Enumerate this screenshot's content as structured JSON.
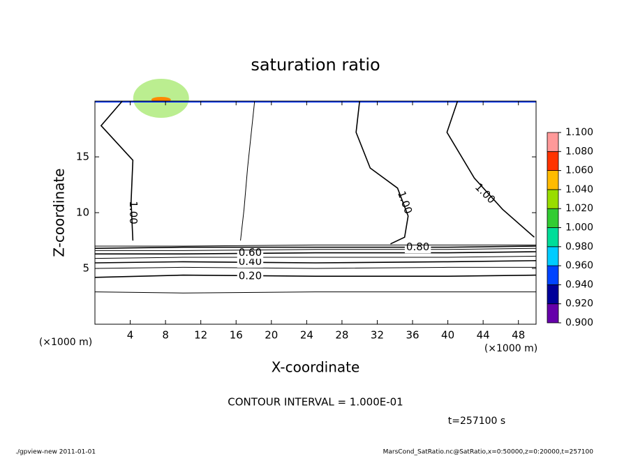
{
  "chart_data": {
    "type": "contour",
    "title": "saturation ratio",
    "xlabel": "X-coordinate",
    "ylabel": "Z-coordinate",
    "xunit": "(×1000 m)",
    "yunit": "(×1000 m)",
    "xlim": [
      0,
      50
    ],
    "ylim": [
      0,
      20
    ],
    "xticks": [
      4,
      8,
      12,
      16,
      20,
      24,
      28,
      32,
      36,
      40,
      44,
      48
    ],
    "yticks": [
      5,
      10,
      15
    ],
    "field_color": "#33cc33",
    "contours": [
      {
        "level": 0.1,
        "x": [
          0,
          10,
          25,
          40,
          50
        ],
        "y": [
          2.9,
          2.8,
          2.9,
          2.9,
          2.9
        ]
      },
      {
        "level": 0.2,
        "label": {
          "value": 0.2,
          "label": "0.20"
        },
        "label_at": [
          17.6,
          4.3
        ],
        "x": [
          0,
          10,
          25,
          40,
          50
        ],
        "y": [
          4.2,
          4.4,
          4.3,
          4.3,
          4.4
        ]
      },
      {
        "level": 0.3,
        "x": [
          0,
          10,
          25,
          40,
          50
        ],
        "y": [
          5.0,
          5.1,
          5.0,
          5.1,
          5.1
        ]
      },
      {
        "level": 0.4,
        "label": {
          "value": 0.4,
          "label": "0.40"
        },
        "label_at": [
          17.6,
          5.6
        ],
        "x": [
          0,
          10,
          25,
          40,
          50
        ],
        "y": [
          5.5,
          5.6,
          5.5,
          5.6,
          5.7
        ]
      },
      {
        "level": 0.5,
        "x": [
          0,
          10,
          25,
          40,
          50
        ],
        "y": [
          5.9,
          6.0,
          6.0,
          6.0,
          6.1
        ]
      },
      {
        "level": 0.6,
        "label": {
          "value": 0.6,
          "label": "0.60"
        },
        "label_at": [
          17.6,
          6.4
        ],
        "x": [
          0,
          10,
          25,
          40,
          50
        ],
        "y": [
          6.3,
          6.3,
          6.4,
          6.4,
          6.5
        ]
      },
      {
        "level": 0.7,
        "x": [
          0,
          10,
          25,
          40,
          50
        ],
        "y": [
          6.6,
          6.6,
          6.7,
          6.7,
          6.8
        ]
      },
      {
        "level": 0.8,
        "label": {
          "value": 0.8,
          "label": "0.80"
        },
        "label_at": [
          36.6,
          6.9
        ],
        "x": [
          0,
          10,
          25,
          40,
          50
        ],
        "y": [
          6.8,
          6.9,
          6.9,
          6.9,
          7.0
        ]
      },
      {
        "level": 0.9,
        "x": [
          0,
          10,
          25,
          40,
          50
        ],
        "y": [
          7.0,
          7.0,
          7.1,
          7.1,
          7.1
        ]
      },
      {
        "level": 1.0,
        "label": {
          "value": 1.0,
          "label": "1.00"
        },
        "label_at": [
          4.3,
          10
        ],
        "label_rotate": 90,
        "x": [
          3.1,
          0.7,
          4.3,
          4.1,
          4.3
        ],
        "y": [
          20,
          17.8,
          14.7,
          11,
          7.5
        ]
      },
      {
        "level": 1.0,
        "x": [
          18.1,
          17.3,
          16.9,
          16.5
        ],
        "y": [
          20,
          14,
          10.3,
          7.5
        ]
      },
      {
        "level": 1.0,
        "label": {
          "value": 1.0,
          "label": "1.00"
        },
        "label_at": [
          35.1,
          10.9
        ],
        "label_rotate": 70,
        "x": [
          30,
          29.6,
          31.2,
          34.3,
          35.5,
          35.1,
          33.5
        ],
        "y": [
          20,
          17.2,
          14,
          12.2,
          9.7,
          7.8,
          7.2
        ]
      },
      {
        "level": 1.0,
        "label": {
          "value": 1.0,
          "label": "1.00"
        },
        "label_at": [
          44.2,
          11.7
        ],
        "label_rotate": 45,
        "x": [
          41.1,
          39.9,
          43,
          46.2,
          49.8
        ],
        "y": [
          20,
          17.2,
          13.1,
          10.3,
          7.8
        ]
      }
    ],
    "colorbar": {
      "ticks": [
        {
          "value": 0.9,
          "label": "0.900"
        },
        {
          "value": 0.92,
          "label": "0.920"
        },
        {
          "value": 0.94,
          "label": "0.940"
        },
        {
          "value": 0.96,
          "label": "0.960"
        },
        {
          "value": 0.98,
          "label": "0.980"
        },
        {
          "value": 1.0,
          "label": "1.000"
        },
        {
          "value": 1.02,
          "label": "1.020"
        },
        {
          "value": 1.04,
          "label": "1.040"
        },
        {
          "value": 1.06,
          "label": "1.060"
        },
        {
          "value": 1.08,
          "label": "1.080"
        },
        {
          "value": 1.1,
          "label": "1.100"
        }
      ],
      "colors": [
        "#6600aa",
        "#000099",
        "#0044ff",
        "#00ccff",
        "#00dd99",
        "#33cc33",
        "#99dd00",
        "#ffbb00",
        "#ff3300",
        "#ff9999"
      ]
    },
    "contour_interval": "CONTOUR INTERVAL = 1.000E-01",
    "time": "t=257100 s",
    "footer_left": "./gpview-new  2011-01-01",
    "footer_right": "MarsCond_SatRatio.nc@SatRatio,x=0:50000,z=0:20000,t=257100"
  }
}
